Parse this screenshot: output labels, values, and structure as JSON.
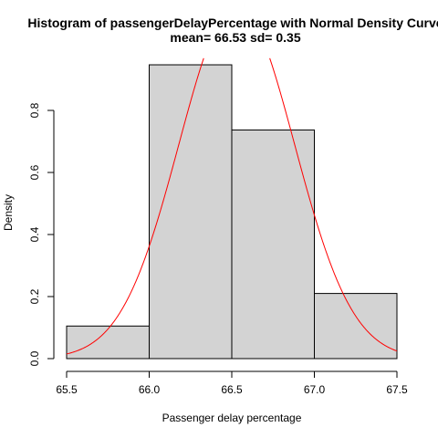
{
  "chart_data": {
    "type": "bar",
    "title": "Histogram of passengerDelayPercentage with Normal Density Curve",
    "subtitle": "mean= 66.53 sd= 0.35",
    "xlabel": "Passenger delay percentage",
    "ylabel": "Density",
    "xlim": [
      65.5,
      67.5
    ],
    "ylim": [
      0,
      0.95
    ],
    "x_ticks": [
      65.5,
      66.0,
      66.5,
      67.0,
      67.5
    ],
    "x_tick_labels": [
      "65.5",
      "66.0",
      "66.5",
      "67.0",
      "67.5"
    ],
    "y_ticks": [
      0.0,
      0.2,
      0.4,
      0.6,
      0.8
    ],
    "y_tick_labels": [
      "0.0",
      "0.2",
      "0.4",
      "0.6",
      "0.8"
    ],
    "bins": [
      {
        "start": 65.5,
        "end": 66.0,
        "density": 0.105
      },
      {
        "start": 66.0,
        "end": 66.5,
        "density": 0.947
      },
      {
        "start": 66.5,
        "end": 67.0,
        "density": 0.737
      },
      {
        "start": 67.0,
        "end": 67.5,
        "density": 0.21
      }
    ],
    "normal_curve": {
      "mean": 66.53,
      "sd": 0.35
    },
    "bar_fill": "#d3d3d3",
    "bar_stroke": "#000000",
    "curve_color": "#ff0000",
    "grid": false,
    "legend": "none"
  }
}
